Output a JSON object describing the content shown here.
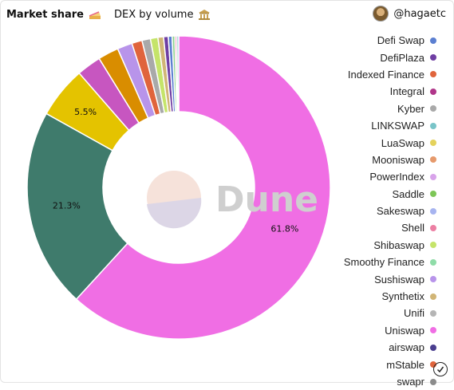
{
  "header": {
    "title": "Market share",
    "title_emoji": "cake-emoji",
    "subtitle": "DEX by volume",
    "subtitle_emoji": "bank-emoji"
  },
  "user": {
    "handle": "@hagaetc",
    "avatar_icon": "user-avatar"
  },
  "watermark": {
    "text": "Dune"
  },
  "chart_data": {
    "type": "pie",
    "style": "donut",
    "legend_position": "right",
    "slices": [
      {
        "name": "Uniswap",
        "value": 61.8,
        "color": "#f06ee4",
        "label": "61.8%"
      },
      {
        "name": "Sushiswap",
        "value": 21.3,
        "color": "#3f7b6c",
        "label": "21.3%"
      },
      {
        "name": "Yellow segment",
        "value": 5.5,
        "color": "#e4c300",
        "label": "5.5%"
      },
      {
        "name": "Magenta segment",
        "value": 2.6,
        "color": "#c756c0",
        "label": ""
      },
      {
        "name": "Orange segment",
        "value": 2.2,
        "color": "#d98d00",
        "label": ""
      },
      {
        "name": "Lavender segment",
        "value": 1.6,
        "color": "#b894ea",
        "label": ""
      },
      {
        "name": "Red-orange segment",
        "value": 1.1,
        "color": "#e0643c",
        "label": ""
      },
      {
        "name": "Gray segment",
        "value": 0.9,
        "color": "#a9a9a9",
        "label": ""
      },
      {
        "name": "Lime segment",
        "value": 0.8,
        "color": "#c5e46a",
        "label": ""
      },
      {
        "name": "Tan segment",
        "value": 0.6,
        "color": "#d1b576",
        "label": ""
      },
      {
        "name": "Purple segment",
        "value": 0.5,
        "color": "#6f3ea3",
        "label": ""
      },
      {
        "name": "Blue segment",
        "value": 0.4,
        "color": "#5b7fd1",
        "label": ""
      },
      {
        "name": "Small segment 1",
        "value": 0.3,
        "color": "#8fd18f",
        "label": ""
      },
      {
        "name": "Small segment 2",
        "value": 0.2,
        "color": "#e98fb6",
        "label": ""
      },
      {
        "name": "Small segment 3",
        "value": 0.2,
        "color": "#79c4c8",
        "label": ""
      }
    ],
    "legend": [
      {
        "name": "Defi Swap",
        "color": "#5b7fd1"
      },
      {
        "name": "DefiPlaza",
        "color": "#6f3ea3"
      },
      {
        "name": "Indexed Finance",
        "color": "#e0643c"
      },
      {
        "name": "Integral",
        "color": "#b0368a"
      },
      {
        "name": "Kyber",
        "color": "#a9a9a9"
      },
      {
        "name": "LINKSWAP",
        "color": "#79c4c8"
      },
      {
        "name": "LuaSwap",
        "color": "#e4d25c"
      },
      {
        "name": "Mooniswap",
        "color": "#e69a6c"
      },
      {
        "name": "PowerIndex",
        "color": "#d8a3ea"
      },
      {
        "name": "Saddle",
        "color": "#7dc657"
      },
      {
        "name": "Sakeswap",
        "color": "#a7b4f0"
      },
      {
        "name": "Shell",
        "color": "#ec7fa3"
      },
      {
        "name": "Shibaswap",
        "color": "#c5e46a"
      },
      {
        "name": "Smoothy Finance",
        "color": "#8fdca8"
      },
      {
        "name": "Sushiswap",
        "color": "#b894ea"
      },
      {
        "name": "Synthetix",
        "color": "#d1b576"
      },
      {
        "name": "Unifi",
        "color": "#b5b5b5"
      },
      {
        "name": "Uniswap",
        "color": "#f06ee4"
      },
      {
        "name": "airswap",
        "color": "#4a3e8f"
      },
      {
        "name": "mStable",
        "color": "#e0643c"
      },
      {
        "name": "swapr",
        "color": "#8c8c8c"
      }
    ]
  },
  "footer": {
    "check_icon": "check-circle-icon"
  }
}
